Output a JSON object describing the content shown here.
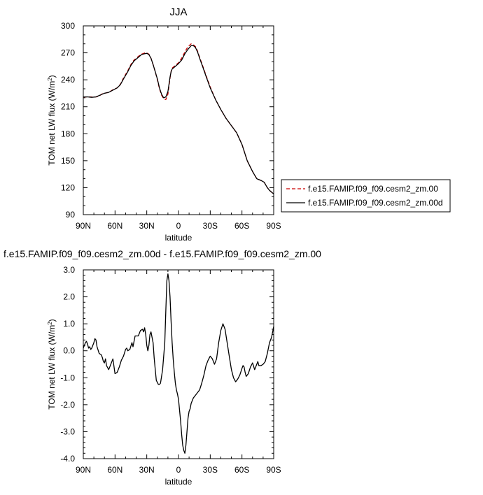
{
  "chart_data": [
    {
      "type": "line",
      "title": "JJA",
      "xlabel": "latitude",
      "ylabel": "TOM net LW flux (W/m",
      "ylabel_sup": "2",
      "ylabel_end": ")",
      "xlim": [
        90,
        -90
      ],
      "ylim": [
        90,
        300
      ],
      "xticks": [
        90,
        60,
        30,
        0,
        -30,
        -60,
        -90
      ],
      "xticklabels": [
        "90N",
        "60N",
        "30N",
        "0",
        "30S",
        "60S",
        "90S"
      ],
      "yticks": [
        90,
        120,
        150,
        180,
        210,
        240,
        270,
        300
      ],
      "yticklabels": [
        "90",
        "120",
        "150",
        "180",
        "210",
        "240",
        "270",
        "300"
      ],
      "legend_position": "right",
      "series": [
        {
          "name": "f.e15.FAMIP.f09_f09.cesm2_zm.00",
          "color": "#cc0000",
          "dash": "dashed",
          "x": [
            90,
            86,
            82,
            78,
            75,
            72,
            70,
            66,
            62,
            58,
            55,
            52,
            48,
            45,
            42,
            38,
            35,
            32,
            30,
            28,
            26,
            24,
            22,
            20,
            18,
            16,
            14,
            12,
            10,
            8,
            7,
            6,
            4,
            2,
            0,
            -3,
            -6,
            -9,
            -12,
            -14,
            -16,
            -18,
            -20,
            -23,
            -26,
            -30,
            -35,
            -40,
            -45,
            -50,
            -55,
            -60,
            -65,
            -70,
            -74,
            -78,
            -81,
            -84,
            -86,
            -88,
            -90
          ],
          "y": [
            221,
            221,
            220.8,
            221,
            222,
            224.5,
            225,
            226,
            229,
            231,
            235,
            242,
            250,
            257,
            262,
            266,
            268.5,
            269.8,
            269.8,
            268.5,
            264,
            257,
            249,
            240,
            230,
            223,
            219,
            218,
            224,
            242,
            249,
            253,
            255,
            257,
            259,
            264,
            271,
            277,
            280,
            279,
            277,
            272,
            265,
            255,
            245,
            232,
            218,
            207,
            197,
            189,
            181,
            168,
            150,
            138,
            130,
            128,
            126,
            120,
            117,
            115,
            113
          ]
        },
        {
          "name": "f.e15.FAMIP.f09_f09.cesm2_zm.00d",
          "color": "#000000",
          "dash": "solid",
          "x": [
            90,
            86,
            82,
            78,
            75,
            72,
            70,
            66,
            62,
            58,
            55,
            52,
            48,
            45,
            42,
            38,
            35,
            32,
            30,
            28,
            26,
            24,
            22,
            20,
            18,
            16,
            14,
            12,
            10,
            8,
            7,
            6,
            4,
            2,
            0,
            -3,
            -6,
            -9,
            -12,
            -14,
            -16,
            -18,
            -20,
            -23,
            -26,
            -30,
            -35,
            -40,
            -45,
            -50,
            -55,
            -60,
            -65,
            -70,
            -74,
            -78,
            -81,
            -84,
            -86,
            -88,
            -90
          ],
          "y": [
            221,
            221,
            220.5,
            221,
            222.5,
            224,
            225,
            226,
            228.5,
            231,
            234.5,
            241,
            249,
            256,
            261,
            265,
            268,
            269,
            269.5,
            268,
            264,
            257,
            249,
            241,
            231,
            224,
            220,
            221,
            227,
            243,
            249,
            252,
            254,
            256,
            258,
            262,
            269,
            274,
            278,
            278,
            276,
            271,
            264,
            254,
            244,
            231,
            218,
            207,
            197,
            189,
            181,
            168,
            150,
            138,
            130,
            128,
            126,
            120,
            117,
            115,
            113
          ]
        }
      ]
    },
    {
      "type": "line",
      "title": "f.e15.FAMIP.f09_f09.cesm2_zm.00d - f.e15.FAMIP.f09_f09.cesm2_zm.00",
      "xlabel": "latitude",
      "ylabel": "TOM net LW flux (W/m",
      "ylabel_sup": "2",
      "ylabel_end": ")",
      "xlim": [
        90,
        -90
      ],
      "ylim": [
        -4.0,
        3.0
      ],
      "xticks": [
        90,
        60,
        30,
        0,
        -30,
        -60,
        -90
      ],
      "xticklabels": [
        "90N",
        "60N",
        "30N",
        "0",
        "30S",
        "60S",
        "90S"
      ],
      "yticks": [
        3.0,
        2.0,
        1.0,
        0.0,
        -1.0,
        -2.0,
        -3.0,
        -4.0
      ],
      "yticklabels": [
        "3.0",
        "2.0",
        "1.0",
        "0.0",
        "-1.0",
        "-2.0",
        "-3.0",
        "-4.0"
      ],
      "series": [
        {
          "name": "",
          "color": "#000000",
          "dash": "solid",
          "x": [
            90,
            88,
            87,
            86,
            85,
            84,
            83,
            82,
            80,
            79,
            78,
            77,
            75,
            73,
            72,
            71,
            70,
            69,
            68,
            66,
            64,
            62,
            60,
            58,
            56,
            54,
            52,
            50,
            49,
            48,
            46,
            44,
            43,
            41,
            38,
            36,
            34,
            33,
            32,
            31,
            30,
            29,
            28,
            27,
            26,
            24,
            23,
            22,
            21,
            19,
            18,
            17,
            15,
            13,
            12,
            11,
            10,
            9,
            8,
            7,
            6,
            5,
            4,
            3,
            2,
            1,
            0,
            -1,
            -2,
            -3,
            -4,
            -5,
            -6,
            -7,
            -8,
            -9,
            -10,
            -11,
            -12,
            -14,
            -16,
            -18,
            -20,
            -22,
            -24,
            -26,
            -28,
            -30,
            -32,
            -34,
            -36,
            -38,
            -40,
            -42,
            -44,
            -46,
            -48,
            -50,
            -52,
            -54,
            -56,
            -58,
            -60,
            -61,
            -62,
            -63,
            -64,
            -66,
            -68,
            -70,
            -72,
            -74,
            -75,
            -76,
            -78,
            -80,
            -82,
            -84,
            -86,
            -88,
            -90
          ],
          "y": [
            0.1,
            0.3,
            0.35,
            0.25,
            0.1,
            0.15,
            0.05,
            0.1,
            0.3,
            0.45,
            0.4,
            0.15,
            -0.1,
            -0.15,
            -0.25,
            -0.4,
            -0.45,
            -0.3,
            -0.55,
            -0.7,
            -0.5,
            -0.3,
            -0.85,
            -0.8,
            -0.6,
            -0.35,
            -0.2,
            0.05,
            0.1,
            0.0,
            0.05,
            0.3,
            0.15,
            0.55,
            0.55,
            0.75,
            0.8,
            0.7,
            0.85,
            0.6,
            0.2,
            0.0,
            0.2,
            0.6,
            0.7,
            0.3,
            -0.25,
            -0.7,
            -1.1,
            -1.25,
            -1.25,
            -1.2,
            -0.7,
            0.3,
            1.5,
            2.6,
            2.85,
            2.6,
            2.0,
            1.1,
            0.3,
            -0.3,
            -0.8,
            -1.2,
            -1.45,
            -1.6,
            -1.8,
            -2.2,
            -2.6,
            -3.1,
            -3.5,
            -3.7,
            -3.8,
            -3.5,
            -3.0,
            -2.5,
            -2.25,
            -2.15,
            -1.95,
            -1.75,
            -1.65,
            -1.55,
            -1.45,
            -1.2,
            -0.9,
            -0.55,
            -0.35,
            -0.2,
            -0.3,
            -0.5,
            -0.3,
            0.3,
            0.75,
            1.0,
            0.8,
            0.3,
            -0.2,
            -0.7,
            -1.0,
            -1.15,
            -1.05,
            -0.9,
            -0.65,
            -0.55,
            -0.6,
            -0.8,
            -0.95,
            -0.85,
            -0.6,
            -0.45,
            -0.7,
            -0.5,
            -0.4,
            -0.55,
            -0.55,
            -0.5,
            -0.4,
            -0.1,
            0.3,
            0.5,
            0.9
          ]
        }
      ]
    }
  ]
}
